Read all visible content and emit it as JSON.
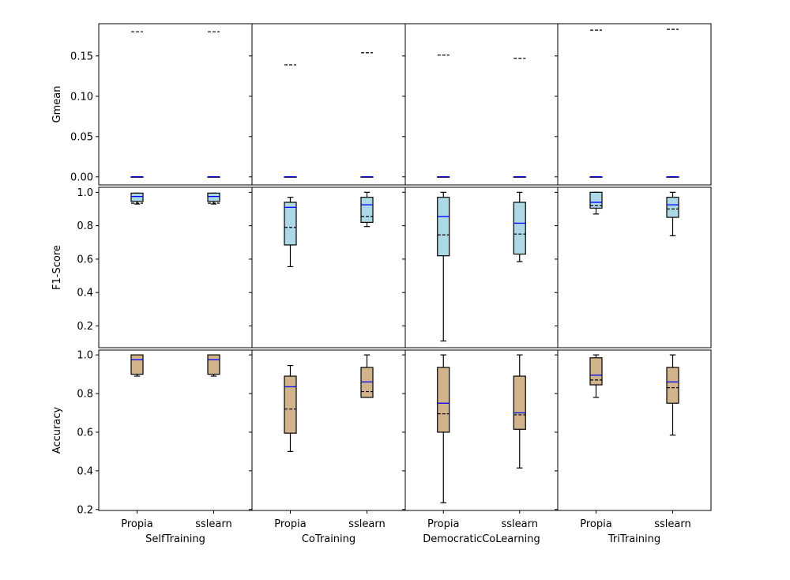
{
  "chart_data": {
    "type": "box",
    "columns": [
      "SelfTraining",
      "CoTraining",
      "DemocraticCoLearning",
      "TriTraining"
    ],
    "categories": [
      "Propia",
      "sslearn"
    ],
    "rows": [
      {
        "ylabel": "Gmean",
        "ylim": [
          -0.01,
          0.19
        ],
        "ticks": [
          0.0,
          0.05,
          0.1,
          0.15
        ],
        "tick_labels": [
          "0.00",
          "0.05",
          "0.10",
          "0.15"
        ],
        "box_fill": "",
        "boxes": [
          [
            {
              "min": 0.0,
              "q1": 0.0,
              "median": 0.0,
              "q3": 0.0,
              "max": 0.0,
              "mean": 0.18
            },
            {
              "min": 0.0,
              "q1": 0.0,
              "median": 0.0,
              "q3": 0.0,
              "max": 0.0,
              "mean": 0.18
            }
          ],
          [
            {
              "min": 0.0,
              "q1": 0.0,
              "median": 0.0,
              "q3": 0.0,
              "max": 0.0,
              "mean": 0.139
            },
            {
              "min": 0.0,
              "q1": 0.0,
              "median": 0.0,
              "q3": 0.0,
              "max": 0.0,
              "mean": 0.154
            }
          ],
          [
            {
              "min": 0.0,
              "q1": 0.0,
              "median": 0.0,
              "q3": 0.0,
              "max": 0.0,
              "mean": 0.151
            },
            {
              "min": 0.0,
              "q1": 0.0,
              "median": 0.0,
              "q3": 0.0,
              "max": 0.0,
              "mean": 0.147
            }
          ],
          [
            {
              "min": 0.0,
              "q1": 0.0,
              "median": 0.0,
              "q3": 0.0,
              "max": 0.0,
              "mean": 0.182
            },
            {
              "min": 0.0,
              "q1": 0.0,
              "median": 0.0,
              "q3": 0.0,
              "max": 0.0,
              "mean": 0.183
            }
          ]
        ]
      },
      {
        "ylabel": "F1-Score",
        "ylim": [
          0.07,
          1.03
        ],
        "ticks": [
          0.2,
          0.4,
          0.6,
          0.8,
          1.0
        ],
        "tick_labels": [
          "0.2",
          "0.4",
          "0.6",
          "0.8",
          "1.0"
        ],
        "box_fill": "#add8e6",
        "boxes": [
          [
            {
              "min": 0.93,
              "q1": 0.945,
              "median": 0.975,
              "q3": 0.995,
              "max": 0.995,
              "mean": 0.935
            },
            {
              "min": 0.93,
              "q1": 0.945,
              "median": 0.975,
              "q3": 0.995,
              "max": 0.995,
              "mean": 0.935
            }
          ],
          [
            {
              "min": 0.555,
              "q1": 0.685,
              "median": 0.91,
              "q3": 0.94,
              "max": 0.97,
              "mean": 0.79
            },
            {
              "min": 0.795,
              "q1": 0.82,
              "median": 0.925,
              "q3": 0.97,
              "max": 1.0,
              "mean": 0.855
            }
          ],
          [
            {
              "min": 0.11,
              "q1": 0.62,
              "median": 0.855,
              "q3": 0.97,
              "max": 1.0,
              "mean": 0.745
            },
            {
              "min": 0.585,
              "q1": 0.63,
              "median": 0.815,
              "q3": 0.94,
              "max": 1.0,
              "mean": 0.75
            }
          ],
          [
            {
              "min": 0.87,
              "q1": 0.905,
              "median": 0.94,
              "q3": 1.0,
              "max": 1.0,
              "mean": 0.92
            },
            {
              "min": 0.74,
              "q1": 0.85,
              "median": 0.925,
              "q3": 0.97,
              "max": 1.0,
              "mean": 0.9
            }
          ]
        ]
      },
      {
        "ylabel": "Accuracy",
        "ylim": [
          0.195,
          1.025
        ],
        "ticks": [
          0.2,
          0.4,
          0.6,
          0.8,
          1.0
        ],
        "tick_labels": [
          "0.2",
          "0.4",
          "0.6",
          "0.8",
          "1.0"
        ],
        "box_fill": "#d2b48c",
        "boxes": [
          [
            {
              "min": 0.89,
              "q1": 0.9,
              "median": 0.975,
              "q3": 1.0,
              "max": 1.0,
              "mean": 0.9
            },
            {
              "min": 0.89,
              "q1": 0.9,
              "median": 0.975,
              "q3": 1.0,
              "max": 1.0,
              "mean": 0.9
            }
          ],
          [
            {
              "min": 0.5,
              "q1": 0.595,
              "median": 0.835,
              "q3": 0.89,
              "max": 0.945,
              "mean": 0.72
            },
            {
              "min": 0.78,
              "q1": 0.78,
              "median": 0.86,
              "q3": 0.935,
              "max": 1.0,
              "mean": 0.81
            }
          ],
          [
            {
              "min": 0.235,
              "q1": 0.6,
              "median": 0.75,
              "q3": 0.935,
              "max": 1.0,
              "mean": 0.695
            },
            {
              "min": 0.415,
              "q1": 0.615,
              "median": 0.7,
              "q3": 0.89,
              "max": 1.0,
              "mean": 0.69
            }
          ],
          [
            {
              "min": 0.78,
              "q1": 0.845,
              "median": 0.895,
              "q3": 0.985,
              "max": 1.0,
              "mean": 0.87
            },
            {
              "min": 0.585,
              "q1": 0.75,
              "median": 0.86,
              "q3": 0.935,
              "max": 1.0,
              "mean": 0.83
            }
          ]
        ]
      }
    ],
    "median_color": "#0000ff",
    "mean_line_style": "dashed",
    "grid": false,
    "legend": "none"
  }
}
